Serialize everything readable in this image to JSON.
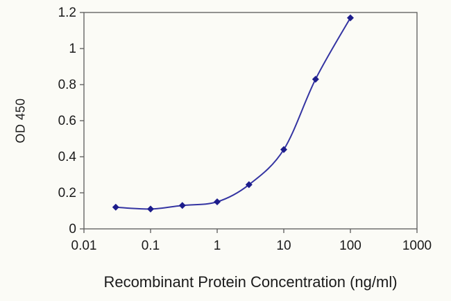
{
  "chart_data": {
    "type": "line",
    "x": [
      0.03,
      0.1,
      0.3,
      1,
      3,
      10,
      30,
      100
    ],
    "y": [
      0.12,
      0.11,
      0.13,
      0.15,
      0.245,
      0.44,
      0.83,
      1.17
    ],
    "title": "",
    "xlabel": "Recombinant Protein Concentration (ng/ml)",
    "ylabel": "OD 450",
    "x_scale": "log",
    "xlim": [
      0.01,
      1000
    ],
    "ylim": [
      0,
      1.2
    ],
    "x_ticks": [
      "0.01",
      "0.1",
      "1",
      "10",
      "100",
      "1000"
    ],
    "y_ticks": [
      "0",
      "0.2",
      "0.4",
      "0.6",
      "0.8",
      "1",
      "1.2"
    ],
    "grid": false,
    "legend": false,
    "marker": "diamond",
    "line_color": "#3434a2",
    "marker_color": "#1d1d8c",
    "axis_color": "#5a5a5a",
    "text_color": "#1a1a1a",
    "background": "#fbfbf6"
  }
}
